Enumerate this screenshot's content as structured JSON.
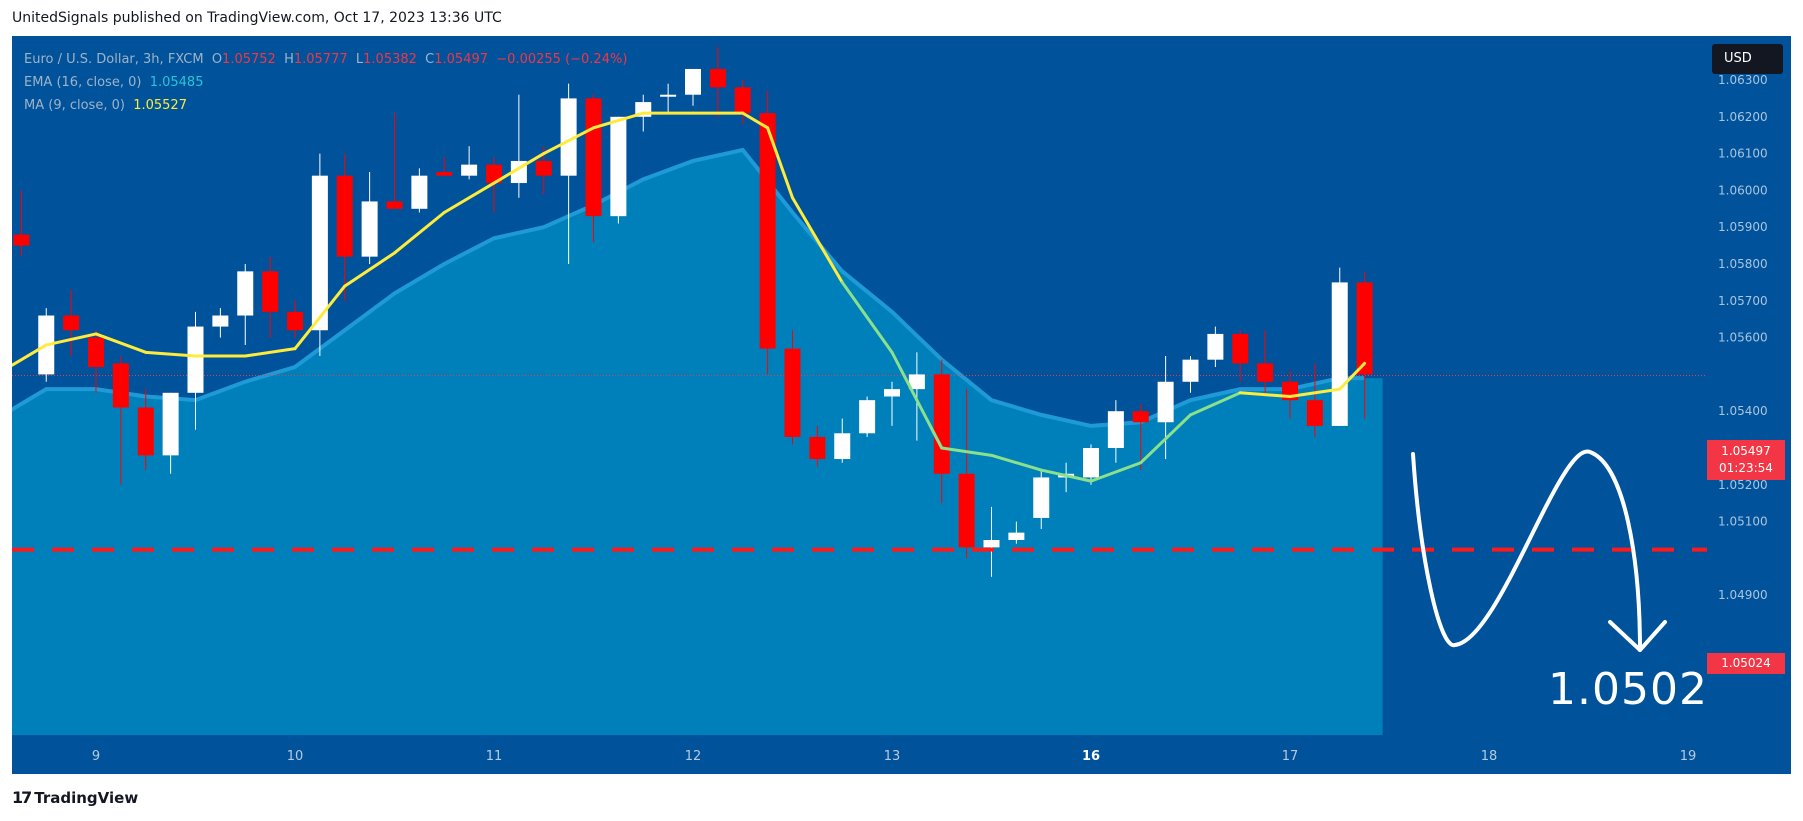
{
  "header": "UnitedSignals published on TradingView.com, Oct 17, 2023 13:36 UTC",
  "legend": {
    "symbol": "Euro / U.S. Dollar, 3h, FXCM",
    "o_label": "O",
    "o": "1.05752",
    "h_label": "H",
    "h": "1.05777",
    "l_label": "L",
    "l": "1.05382",
    "c_label": "C",
    "c": "1.05497",
    "change": "−0.00255 (−0.24%)",
    "ema_label": "EMA (16, close, 0)",
    "ema_value": "1.05485",
    "ma_label": "MA (9, close, 0)",
    "ma_value": "1.05527"
  },
  "currency": "USD",
  "last_price": {
    "price": "1.05497",
    "countdown": "01:23:54"
  },
  "target": {
    "label": "1.05024",
    "big_label": "1.0502"
  },
  "footer": "TradingView",
  "colors": {
    "background": "#00529b",
    "up": "#ffffff",
    "down": "#ff0000",
    "ema_area": "#0088c0",
    "ema_line": "#1e9ad6",
    "ma_line": "#ffeb3b",
    "ma_line_alt": "#8be08b",
    "target_line": "#ff1a1a"
  },
  "chart_data": {
    "type": "candlestick",
    "timeframe": "3h",
    "y_ticks": [
      "1.06300",
      "1.06200",
      "1.06100",
      "1.06000",
      "1.05900",
      "1.05800",
      "1.05700",
      "1.05600",
      "1.05400",
      "1.05300",
      "1.05200",
      "1.05100",
      "1.04900"
    ],
    "y_tick_values": [
      1.063,
      1.062,
      1.061,
      1.06,
      1.059,
      1.058,
      1.057,
      1.056,
      1.054,
      1.053,
      1.052,
      1.051,
      1.049
    ],
    "x_labels": [
      "9",
      "10",
      "11",
      "12",
      "13",
      "16",
      "17",
      "18",
      "19"
    ],
    "x_bold": [
      "16"
    ],
    "x_positions": [
      1.0,
      3.0,
      5.0,
      7.0,
      9.0,
      11.0,
      13.0,
      15.0,
      17.0
    ],
    "x_range": [
      0.2,
      17.2
    ],
    "ylim": [
      1.0483,
      1.0645
    ],
    "candles": [
      {
        "t": 0.0,
        "o": 1.0536,
        "h": 1.06,
        "l": 1.0536,
        "c": 1.0588
      },
      {
        "t": 0.25,
        "o": 1.0588,
        "h": 1.06,
        "l": 1.0582,
        "c": 1.0585
      },
      {
        "t": 0.5,
        "o": 1.055,
        "h": 1.0568,
        "l": 1.0548,
        "c": 1.0566
      },
      {
        "t": 0.75,
        "o": 1.0566,
        "h": 1.0573,
        "l": 1.0555,
        "c": 1.0562
      },
      {
        "t": 1.0,
        "o": 1.056,
        "h": 1.0562,
        "l": 1.0545,
        "c": 1.0552
      },
      {
        "t": 1.25,
        "o": 1.0553,
        "h": 1.0555,
        "l": 1.052,
        "c": 1.0541
      },
      {
        "t": 1.5,
        "o": 1.0541,
        "h": 1.0546,
        "l": 1.0524,
        "c": 1.0528
      },
      {
        "t": 1.75,
        "o": 1.0528,
        "h": 1.0545,
        "l": 1.0523,
        "c": 1.0545
      },
      {
        "t": 2.0,
        "o": 1.0545,
        "h": 1.0567,
        "l": 1.0535,
        "c": 1.0563
      },
      {
        "t": 2.25,
        "o": 1.0563,
        "h": 1.0568,
        "l": 1.056,
        "c": 1.0566
      },
      {
        "t": 2.5,
        "o": 1.0566,
        "h": 1.058,
        "l": 1.0558,
        "c": 1.0578
      },
      {
        "t": 2.75,
        "o": 1.0578,
        "h": 1.0582,
        "l": 1.056,
        "c": 1.0567
      },
      {
        "t": 3.0,
        "o": 1.0567,
        "h": 1.057,
        "l": 1.056,
        "c": 1.0562
      },
      {
        "t": 3.25,
        "o": 1.0562,
        "h": 1.061,
        "l": 1.0555,
        "c": 1.0604
      },
      {
        "t": 3.5,
        "o": 1.0604,
        "h": 1.061,
        "l": 1.057,
        "c": 1.0582
      },
      {
        "t": 3.75,
        "o": 1.0582,
        "h": 1.0605,
        "l": 1.058,
        "c": 1.0597
      },
      {
        "t": 4.0,
        "o": 1.0597,
        "h": 1.0621,
        "l": 1.0595,
        "c": 1.0595
      },
      {
        "t": 4.25,
        "o": 1.0595,
        "h": 1.0606,
        "l": 1.0594,
        "c": 1.0604
      },
      {
        "t": 4.5,
        "o": 1.0605,
        "h": 1.0609,
        "l": 1.0604,
        "c": 1.0604
      },
      {
        "t": 4.75,
        "o": 1.0604,
        "h": 1.0612,
        "l": 1.0603,
        "c": 1.0607
      },
      {
        "t": 5.0,
        "o": 1.0607,
        "h": 1.0609,
        "l": 1.0594,
        "c": 1.0602
      },
      {
        "t": 5.25,
        "o": 1.0602,
        "h": 1.0626,
        "l": 1.0598,
        "c": 1.0608
      },
      {
        "t": 5.5,
        "o": 1.0608,
        "h": 1.0612,
        "l": 1.0599,
        "c": 1.0604
      },
      {
        "t": 5.75,
        "o": 1.0604,
        "h": 1.0629,
        "l": 1.058,
        "c": 1.0625
      },
      {
        "t": 6.0,
        "o": 1.0625,
        "h": 1.0626,
        "l": 1.0586,
        "c": 1.0593
      },
      {
        "t": 6.25,
        "o": 1.0593,
        "h": 1.062,
        "l": 1.0591,
        "c": 1.062
      },
      {
        "t": 6.5,
        "o": 1.062,
        "h": 1.0626,
        "l": 1.0616,
        "c": 1.0624
      },
      {
        "t": 6.75,
        "o": 1.0626,
        "h": 1.0629,
        "l": 1.0621,
        "c": 1.0626
      },
      {
        "t": 7.0,
        "o": 1.0626,
        "h": 1.0633,
        "l": 1.0623,
        "c": 1.0633
      },
      {
        "t": 7.25,
        "o": 1.0633,
        "h": 1.0639,
        "l": 1.062,
        "c": 1.0628
      },
      {
        "t": 7.5,
        "o": 1.0628,
        "h": 1.063,
        "l": 1.0618,
        "c": 1.0621
      },
      {
        "t": 7.75,
        "o": 1.0621,
        "h": 1.0627,
        "l": 1.055,
        "c": 1.0557
      },
      {
        "t": 8.0,
        "o": 1.0557,
        "h": 1.0562,
        "l": 1.0531,
        "c": 1.0533
      },
      {
        "t": 8.25,
        "o": 1.0533,
        "h": 1.0536,
        "l": 1.0525,
        "c": 1.0527
      },
      {
        "t": 8.5,
        "o": 1.0527,
        "h": 1.0538,
        "l": 1.0526,
        "c": 1.0534
      },
      {
        "t": 8.75,
        "o": 1.0534,
        "h": 1.0544,
        "l": 1.0533,
        "c": 1.0543
      },
      {
        "t": 9.0,
        "o": 1.0544,
        "h": 1.0548,
        "l": 1.0536,
        "c": 1.0546
      },
      {
        "t": 9.25,
        "o": 1.0546,
        "h": 1.0556,
        "l": 1.0532,
        "c": 1.055
      },
      {
        "t": 9.5,
        "o": 1.055,
        "h": 1.0554,
        "l": 1.0515,
        "c": 1.0523
      },
      {
        "t": 9.75,
        "o": 1.0523,
        "h": 1.0546,
        "l": 1.05,
        "c": 1.0503
      },
      {
        "t": 10.0,
        "o": 1.0503,
        "h": 1.0514,
        "l": 1.0495,
        "c": 1.0505
      },
      {
        "t": 10.25,
        "o": 1.0505,
        "h": 1.051,
        "l": 1.0504,
        "c": 1.0507
      },
      {
        "t": 10.5,
        "o": 1.0511,
        "h": 1.0524,
        "l": 1.0508,
        "c": 1.0522
      },
      {
        "t": 10.75,
        "o": 1.0522,
        "h": 1.0526,
        "l": 1.0518,
        "c": 1.0523
      },
      {
        "t": 11.0,
        "o": 1.0522,
        "h": 1.0531,
        "l": 1.052,
        "c": 1.053
      },
      {
        "t": 11.25,
        "o": 1.053,
        "h": 1.0543,
        "l": 1.0526,
        "c": 1.054
      },
      {
        "t": 11.5,
        "o": 1.054,
        "h": 1.0542,
        "l": 1.0524,
        "c": 1.0537
      },
      {
        "t": 11.75,
        "o": 1.0537,
        "h": 1.0555,
        "l": 1.0527,
        "c": 1.0548
      },
      {
        "t": 12.0,
        "o": 1.0548,
        "h": 1.0555,
        "l": 1.0545,
        "c": 1.0554
      },
      {
        "t": 12.25,
        "o": 1.0554,
        "h": 1.0563,
        "l": 1.0552,
        "c": 1.0561
      },
      {
        "t": 12.5,
        "o": 1.0561,
        "h": 1.0562,
        "l": 1.0548,
        "c": 1.0553
      },
      {
        "t": 12.75,
        "o": 1.0553,
        "h": 1.0562,
        "l": 1.0545,
        "c": 1.0548
      },
      {
        "t": 13.0,
        "o": 1.0548,
        "h": 1.0551,
        "l": 1.0538,
        "c": 1.0543
      },
      {
        "t": 13.25,
        "o": 1.0543,
        "h": 1.0553,
        "l": 1.0533,
        "c": 1.0536
      },
      {
        "t": 13.5,
        "o": 1.0536,
        "h": 1.0579,
        "l": 1.0536,
        "c": 1.0575
      },
      {
        "t": 13.75,
        "o": 1.0575,
        "h": 1.0578,
        "l": 1.0538,
        "c": 1.055
      }
    ],
    "ema": {
      "name": "EMA (16, close, 0)",
      "x": [
        0.0,
        0.5,
        1.0,
        1.5,
        2.0,
        2.5,
        3.0,
        3.5,
        4.0,
        4.5,
        5.0,
        5.5,
        6.0,
        6.5,
        7.0,
        7.5,
        8.0,
        8.5,
        9.0,
        9.5,
        10.0,
        10.5,
        11.0,
        11.5,
        12.0,
        12.5,
        13.0,
        13.5,
        13.75
      ],
      "values": [
        1.0538,
        1.0546,
        1.0546,
        1.0544,
        1.0543,
        1.0548,
        1.0552,
        1.0562,
        1.0572,
        1.058,
        1.0587,
        1.059,
        1.0596,
        1.0603,
        1.0608,
        1.0611,
        1.0594,
        1.0578,
        1.0567,
        1.0554,
        1.0543,
        1.0539,
        1.0536,
        1.0537,
        1.0543,
        1.0546,
        1.0546,
        1.0549,
        1.0549
      ]
    },
    "ma": {
      "name": "MA (9, close, 0)",
      "x": [
        0.0,
        0.5,
        1.0,
        1.5,
        2.0,
        2.5,
        3.0,
        3.5,
        4.0,
        4.5,
        5.0,
        5.5,
        6.0,
        6.5,
        7.0,
        7.5,
        7.75,
        8.0,
        8.5,
        9.0,
        9.5,
        10.0,
        10.5,
        11.0,
        11.5,
        12.0,
        12.5,
        13.0,
        13.5,
        13.75
      ],
      "values": [
        1.055,
        1.0558,
        1.0561,
        1.0556,
        1.0555,
        1.0555,
        1.0557,
        1.0574,
        1.0583,
        1.0594,
        1.0602,
        1.061,
        1.0617,
        1.0621,
        1.0621,
        1.0621,
        1.0617,
        1.0598,
        1.0575,
        1.0556,
        1.053,
        1.0528,
        1.0524,
        1.0521,
        1.0526,
        1.0539,
        1.0545,
        1.0544,
        1.0546,
        1.0553
      ]
    },
    "last_price": 1.05497,
    "target_level": 1.05024,
    "projection": "down-up-down path to 1.0502"
  }
}
